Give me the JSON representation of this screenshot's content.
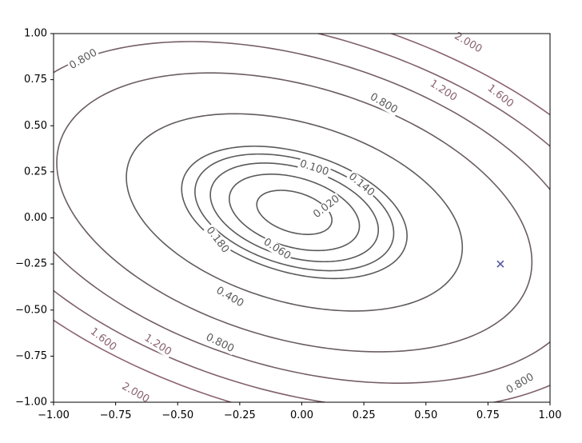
{
  "chart_data": {
    "type": "contour",
    "title": "",
    "xlabel": "",
    "ylabel": "",
    "xlim": [
      -1.0,
      1.0
    ],
    "ylim": [
      -1.0,
      1.0
    ],
    "grid": false,
    "x_ticks": [
      "−1.00",
      "−0.75",
      "−0.50",
      "−0.25",
      "0.00",
      "0.25",
      "0.50",
      "0.75",
      "1.00"
    ],
    "y_ticks": [
      "−1.00",
      "−0.75",
      "−0.50",
      "−0.25",
      "0.00",
      "0.25",
      "0.50",
      "0.75",
      "1.00"
    ],
    "x_tick_values": [
      -1.0,
      -0.75,
      -0.5,
      -0.25,
      0.0,
      0.25,
      0.5,
      0.75,
      1.0
    ],
    "y_tick_values": [
      -1.0,
      -0.75,
      -0.5,
      -0.25,
      0.0,
      0.25,
      0.5,
      0.75,
      1.0
    ],
    "center": [
      -0.03,
      0.03
    ],
    "quadratic_form": {
      "a": 1.0,
      "b": 0.9,
      "c": 1.6
    },
    "levels": [
      0.02,
      0.06,
      0.1,
      0.14,
      0.18,
      0.4,
      0.8,
      1.2,
      1.6,
      2.0
    ],
    "level_labels": [
      {
        "text": "0.020",
        "x": 0.1,
        "y": 0.06,
        "angle": -38
      },
      {
        "text": "0.060",
        "x": -0.1,
        "y": -0.17,
        "angle": 33
      },
      {
        "text": "0.100",
        "x": 0.05,
        "y": 0.27,
        "angle": 18
      },
      {
        "text": "0.140",
        "x": 0.24,
        "y": 0.18,
        "angle": 40
      },
      {
        "text": "0.180",
        "x": -0.34,
        "y": -0.12,
        "angle": 52
      },
      {
        "text": "0.400",
        "x": -0.29,
        "y": -0.43,
        "angle": 30
      },
      {
        "text": "0.800",
        "x": -0.88,
        "y": 0.86,
        "angle": -30
      },
      {
        "text": "0.800",
        "x": 0.33,
        "y": 0.62,
        "angle": 30
      },
      {
        "text": "0.800",
        "x": -0.33,
        "y": -0.68,
        "angle": 26
      },
      {
        "text": "0.800",
        "x": 0.88,
        "y": -0.9,
        "angle": -30
      },
      {
        "text": "1.200",
        "x": 0.57,
        "y": 0.69,
        "angle": 33
      },
      {
        "text": "1.200",
        "x": -0.58,
        "y": -0.69,
        "angle": 33
      },
      {
        "text": "1.600",
        "x": 0.8,
        "y": 0.66,
        "angle": 38
      },
      {
        "text": "1.600",
        "x": -0.8,
        "y": -0.66,
        "angle": 38
      },
      {
        "text": "2.000",
        "x": 0.67,
        "y": 0.95,
        "angle": 30
      },
      {
        "text": "2.000",
        "x": -0.67,
        "y": -0.95,
        "angle": 30
      }
    ],
    "marker": {
      "x": 0.8,
      "y": -0.25,
      "symbol": "x",
      "color": "#5b5ea6"
    },
    "colors": {
      "low": "#5a5a5a",
      "high": "#8b6370",
      "marker": "#5b5ea6"
    }
  }
}
